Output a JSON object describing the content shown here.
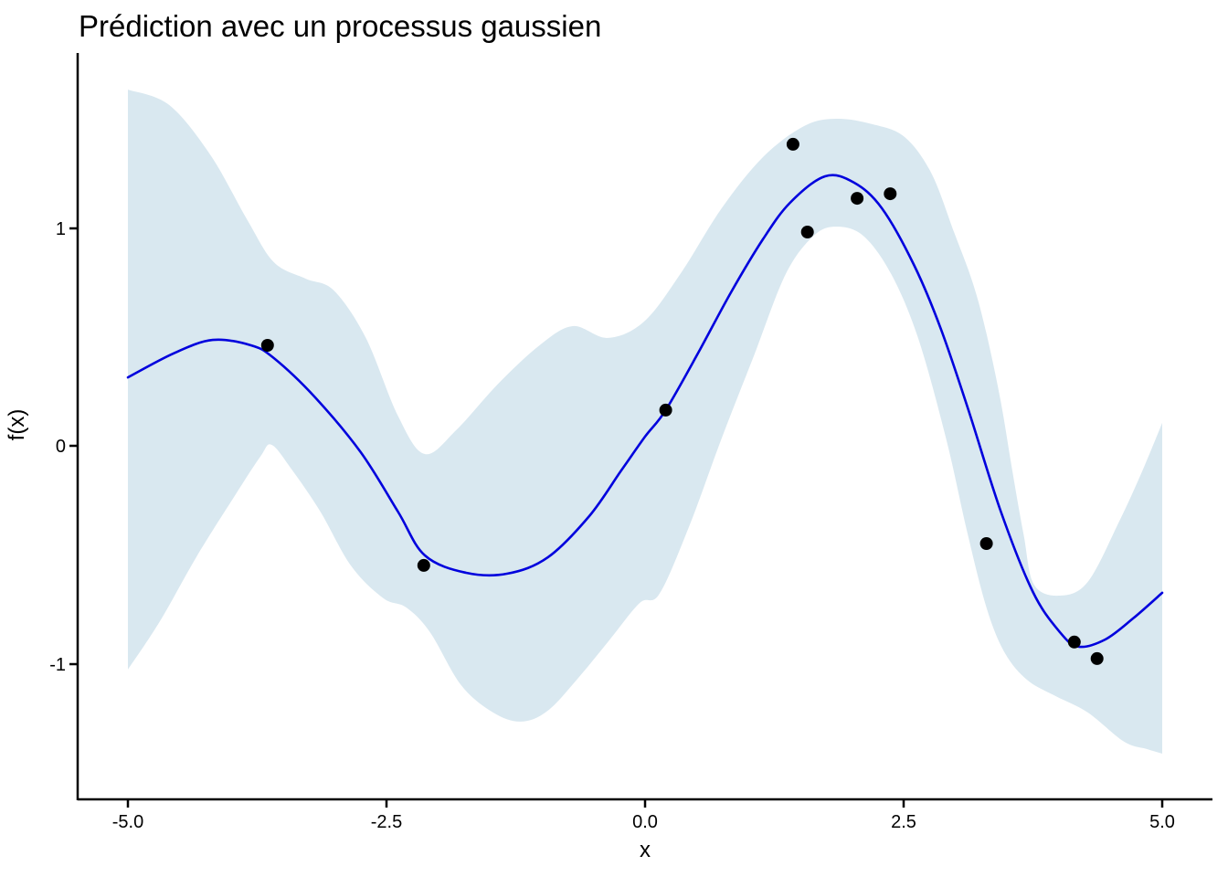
{
  "page": {
    "title": "Prédiction avec un processus gaussien"
  },
  "chart_data": {
    "type": "line",
    "title": "Prédiction avec un processus gaussien",
    "xlabel": "x",
    "ylabel": "f(x)",
    "xlim": [
      -5.486,
      5.486
    ],
    "ylim": [
      -1.623,
      1.803
    ],
    "grid": false,
    "legend": "none",
    "background": "#ffffff",
    "colors": {
      "mean_line": "#0000dd",
      "ribbon": "#d9e8f0",
      "points": "#000000",
      "axis": "#000000"
    },
    "x_ticks": {
      "values": [
        -5.0,
        -2.5,
        0.0,
        2.5,
        5.0
      ],
      "labels": [
        "-5.0",
        "-2.5",
        "0.0",
        "2.5",
        "5.0"
      ]
    },
    "y_ticks": {
      "values": [
        -1,
        0,
        1
      ],
      "labels": [
        "-1",
        "0",
        "1"
      ]
    },
    "series": [
      {
        "name": "confidence-band",
        "type": "ribbon",
        "upper": {
          "x": [
            -5.0,
            -4.6,
            -4.2,
            -3.85,
            -3.59,
            -3.28,
            -3.01,
            -2.7,
            -2.39,
            -2.13,
            -1.82,
            -1.42,
            -1.02,
            -0.7,
            -0.36,
            -0.01,
            0.34,
            0.74,
            1.14,
            1.54,
            1.85,
            2.2,
            2.51,
            2.77,
            2.99,
            3.17,
            3.3,
            3.44,
            3.55,
            3.66,
            3.76,
            4.01,
            4.28,
            4.58,
            4.81,
            5.0
          ],
          "y": [
            1.635,
            1.564,
            1.333,
            1.04,
            0.843,
            0.767,
            0.713,
            0.495,
            0.138,
            -0.038,
            0.075,
            0.285,
            0.461,
            0.549,
            0.495,
            0.57,
            0.788,
            1.09,
            1.325,
            1.468,
            1.501,
            1.476,
            1.417,
            1.249,
            0.977,
            0.746,
            0.516,
            0.201,
            -0.113,
            -0.407,
            -0.637,
            -0.688,
            -0.625,
            -0.352,
            -0.113,
            0.105
          ]
        },
        "lower": {
          "x": [
            -5.0,
            -4.69,
            -4.34,
            -3.98,
            -3.72,
            -3.61,
            -3.41,
            -3.14,
            -2.84,
            -2.53,
            -2.31,
            -2.08,
            -1.78,
            -1.47,
            -1.2,
            -0.94,
            -0.63,
            -0.34,
            -0.05,
            0.14,
            0.43,
            0.74,
            1.05,
            1.36,
            1.63,
            1.85,
            2.11,
            2.38,
            2.64,
            2.91,
            3.11,
            3.3,
            3.48,
            3.7,
            3.97,
            4.28,
            4.63,
            4.85,
            5.0
          ],
          "y": [
            -1.027,
            -0.805,
            -0.512,
            -0.239,
            -0.05,
            0.004,
            -0.113,
            -0.302,
            -0.553,
            -0.7,
            -0.742,
            -0.855,
            -1.098,
            -1.224,
            -1.266,
            -1.216,
            -1.057,
            -0.889,
            -0.721,
            -0.679,
            -0.365,
            0.034,
            0.411,
            0.788,
            0.964,
            1.006,
            0.964,
            0.788,
            0.495,
            0.034,
            -0.386,
            -0.742,
            -0.952,
            -1.077,
            -1.149,
            -1.224,
            -1.358,
            -1.392,
            -1.413
          ]
        }
      },
      {
        "name": "gp-mean",
        "type": "line",
        "x": [
          -5.0,
          -4.56,
          -4.18,
          -3.81,
          -3.59,
          -3.19,
          -2.75,
          -2.39,
          -2.13,
          -1.73,
          -1.33,
          -0.94,
          -0.54,
          -0.23,
          0.0,
          0.2,
          0.52,
          0.83,
          1.14,
          1.4,
          1.74,
          2.02,
          2.29,
          2.6,
          2.86,
          3.13,
          3.44,
          3.75,
          4.01,
          4.19,
          4.45,
          4.72,
          5.0
        ],
        "y": [
          0.314,
          0.424,
          0.486,
          0.461,
          0.403,
          0.222,
          -0.029,
          -0.302,
          -0.503,
          -0.583,
          -0.587,
          -0.512,
          -0.323,
          -0.113,
          0.042,
          0.164,
          0.432,
          0.704,
          0.948,
          1.115,
          1.237,
          1.208,
          1.09,
          0.83,
          0.537,
          0.159,
          -0.302,
          -0.671,
          -0.855,
          -0.922,
          -0.889,
          -0.792,
          -0.675
        ]
      },
      {
        "name": "observations",
        "type": "scatter",
        "x": [
          -3.65,
          -2.14,
          0.2,
          1.43,
          1.57,
          2.05,
          2.37,
          3.3,
          4.15,
          4.37
        ],
        "y": [
          0.461,
          -0.549,
          0.164,
          1.384,
          0.981,
          1.136,
          1.157,
          -0.449,
          -0.901,
          -0.977
        ]
      }
    ]
  }
}
